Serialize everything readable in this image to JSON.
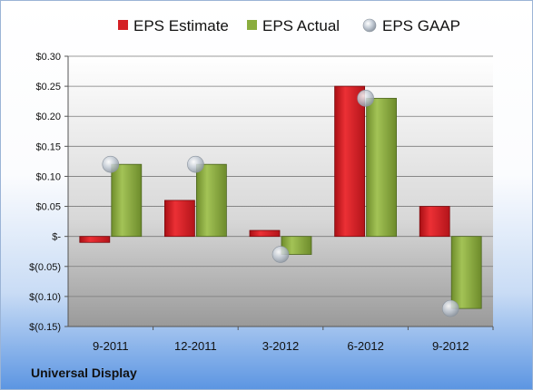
{
  "chart_data": {
    "type": "bar",
    "categories": [
      "9-2011",
      "12-2011",
      "3-2012",
      "6-2012",
      "9-2012"
    ],
    "series": [
      {
        "name": "EPS Estimate",
        "kind": "bar",
        "color": "#d42025",
        "values": [
          -0.01,
          0.06,
          0.01,
          0.25,
          0.05
        ]
      },
      {
        "name": "EPS Actual",
        "kind": "bar",
        "color": "#8aad3e",
        "values": [
          0.12,
          0.12,
          -0.03,
          0.23,
          -0.12
        ]
      },
      {
        "name": "EPS GAAP",
        "kind": "marker",
        "color": "#bfc6cf",
        "values": [
          0.12,
          0.12,
          -0.03,
          0.23,
          -0.12
        ]
      }
    ],
    "ylim": [
      -0.15,
      0.3
    ],
    "yticks": [
      0.3,
      0.25,
      0.2,
      0.15,
      0.1,
      0.05,
      0,
      -0.05,
      -0.1,
      -0.15
    ],
    "ytick_labels": [
      "$0.30",
      "$0.25",
      "$0.20",
      "$0.15",
      "$0.10",
      "$0.05",
      "$-",
      "$(0.05)",
      "$(0.10)",
      "$(0.15)"
    ],
    "grid": true,
    "legend_position": "top"
  },
  "footer": {
    "company": "Universal Display"
  }
}
